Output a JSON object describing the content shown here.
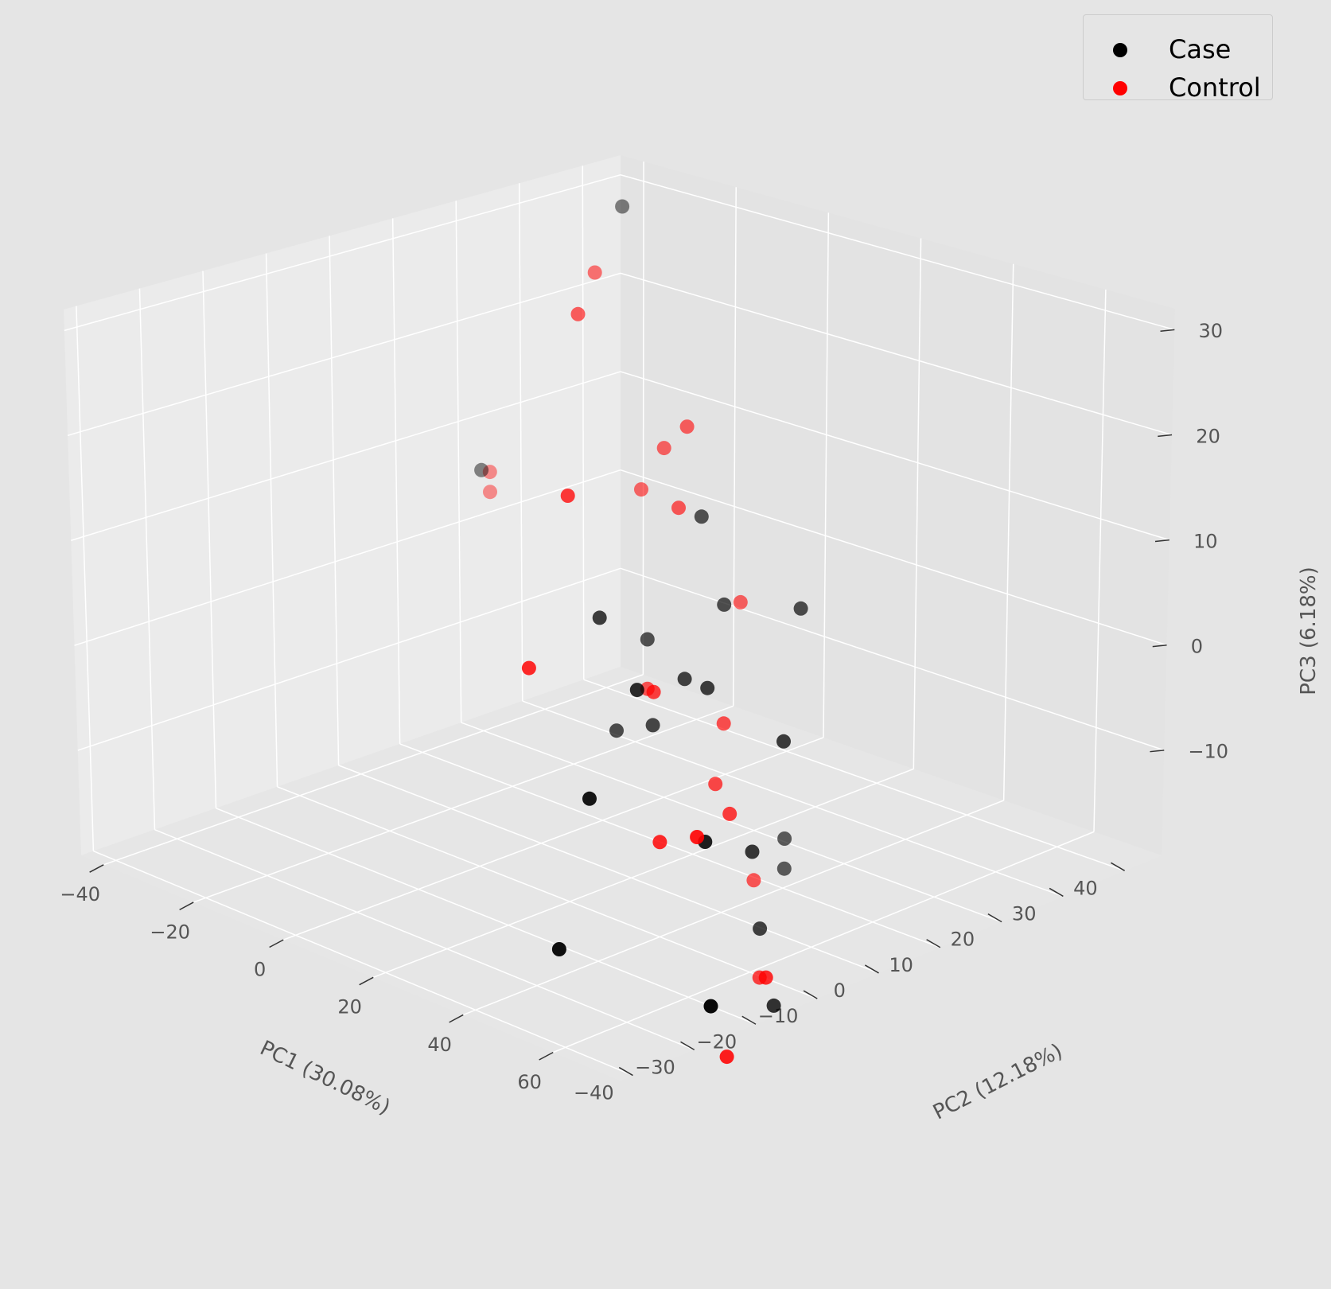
{
  "chart_data": {
    "type": "scatter",
    "projection": "3d",
    "style": "ggplot",
    "xlabel": "PC1 (30.08%)",
    "ylabel": "PC2 (12.18%)",
    "zlabel": "PC3 (6.18%)",
    "xlim": [
      -45,
      75
    ],
    "ylim": [
      -42,
      46
    ],
    "zlim": [
      -20,
      32
    ],
    "xticks": [
      -40,
      -20,
      0,
      20,
      40,
      60
    ],
    "yticks": [
      -40,
      -30,
      -20,
      -10,
      0,
      10,
      20,
      30,
      40
    ],
    "zticks": [
      -10,
      0,
      10,
      20,
      30
    ],
    "grid": true,
    "legend_position": "top-right",
    "series": [
      {
        "name": "Case",
        "color": "#000000",
        "points": [
          {
            "x": -20,
            "y": 28,
            "z": 34
          },
          {
            "x": -40,
            "y": 20,
            "z": 6
          },
          {
            "x": 15,
            "y": 15,
            "z": 12
          },
          {
            "x": 10,
            "y": 10,
            "z": 0
          },
          {
            "x": 25,
            "y": 5,
            "z": 0
          },
          {
            "x": 20,
            "y": 15,
            "z": 4
          },
          {
            "x": 18,
            "y": 5,
            "z": -6
          },
          {
            "x": 10,
            "y": 5,
            "z": -8
          },
          {
            "x": 30,
            "y": 20,
            "z": 4
          },
          {
            "x": 20,
            "y": -5,
            "z": 8
          },
          {
            "x": 35,
            "y": -10,
            "z": 5
          },
          {
            "x": 45,
            "y": -25,
            "z": 0
          },
          {
            "x": 45,
            "y": -30,
            "z": -15
          },
          {
            "x": 30,
            "y": 5,
            "z": 0
          },
          {
            "x": 40,
            "y": 10,
            "z": -5
          },
          {
            "x": 50,
            "y": -10,
            "z": -8
          },
          {
            "x": 40,
            "y": 5,
            "z": -15
          },
          {
            "x": 20,
            "y": 25,
            "z": -25
          },
          {
            "x": 20,
            "y": 25,
            "z": -22
          },
          {
            "x": 35,
            "y": 10,
            "z": -25
          },
          {
            "x": 65,
            "y": -20,
            "z": -20
          },
          {
            "x": 45,
            "y": 5,
            "z": -30
          }
        ]
      },
      {
        "name": "Control",
        "color": "#ff0000",
        "points": [
          {
            "x": -15,
            "y": 20,
            "z": 30
          },
          {
            "x": -5,
            "y": 10,
            "z": 30
          },
          {
            "x": -45,
            "y": 25,
            "z": 4
          },
          {
            "x": -45,
            "y": 25,
            "z": 2
          },
          {
            "x": -5,
            "y": 20,
            "z": 10
          },
          {
            "x": 0,
            "y": 20,
            "z": 15
          },
          {
            "x": 5,
            "y": 20,
            "z": 18
          },
          {
            "x": 10,
            "y": 15,
            "z": 12
          },
          {
            "x": 20,
            "y": -10,
            "z": 22
          },
          {
            "x": 25,
            "y": -20,
            "z": 8
          },
          {
            "x": 10,
            "y": 10,
            "z": -5
          },
          {
            "x": 10,
            "y": 25,
            "z": 0
          },
          {
            "x": 25,
            "y": 0,
            "z": 0
          },
          {
            "x": 20,
            "y": 15,
            "z": -8
          },
          {
            "x": 25,
            "y": 10,
            "z": -12
          },
          {
            "x": 35,
            "y": 5,
            "z": -12
          },
          {
            "x": 40,
            "y": -10,
            "z": -10
          },
          {
            "x": 55,
            "y": -15,
            "z": -5
          },
          {
            "x": 20,
            "y": 20,
            "z": -25
          },
          {
            "x": 35,
            "y": 10,
            "z": -30
          },
          {
            "x": 55,
            "y": -10,
            "z": -30
          },
          {
            "x": 50,
            "y": 0,
            "z": -25
          }
        ]
      }
    ]
  }
}
